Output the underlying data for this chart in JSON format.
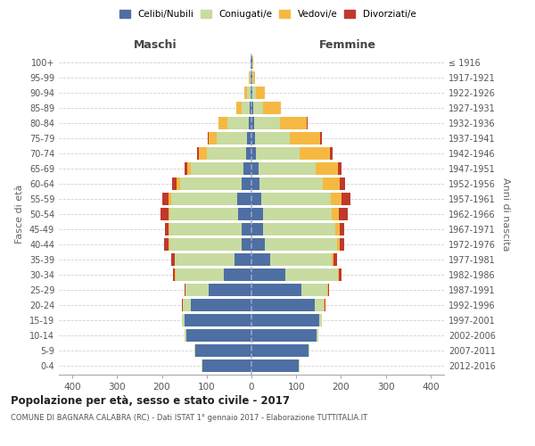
{
  "age_groups": [
    "0-4",
    "5-9",
    "10-14",
    "15-19",
    "20-24",
    "25-29",
    "30-34",
    "35-39",
    "40-44",
    "45-49",
    "50-54",
    "55-59",
    "60-64",
    "65-69",
    "70-74",
    "75-79",
    "80-84",
    "85-89",
    "90-94",
    "95-99",
    "100+"
  ],
  "birth_years": [
    "2012-2016",
    "2007-2011",
    "2002-2006",
    "1997-2001",
    "1992-1996",
    "1987-1991",
    "1982-1986",
    "1977-1981",
    "1972-1976",
    "1967-1971",
    "1962-1966",
    "1957-1961",
    "1952-1956",
    "1947-1951",
    "1942-1946",
    "1937-1941",
    "1932-1936",
    "1927-1931",
    "1922-1926",
    "1917-1921",
    "≤ 1916"
  ],
  "male": {
    "celibi": [
      110,
      125,
      145,
      150,
      135,
      95,
      62,
      38,
      22,
      22,
      30,
      32,
      22,
      18,
      12,
      10,
      6,
      4,
      2,
      1,
      1
    ],
    "coniugati": [
      2,
      2,
      5,
      5,
      18,
      52,
      108,
      133,
      162,
      162,
      153,
      148,
      138,
      118,
      88,
      68,
      48,
      18,
      8,
      2,
      1
    ],
    "vedovi": [
      0,
      0,
      0,
      0,
      1,
      1,
      1,
      1,
      1,
      2,
      3,
      5,
      8,
      8,
      18,
      18,
      20,
      12,
      5,
      2,
      0
    ],
    "divorziati": [
      0,
      0,
      0,
      0,
      2,
      2,
      4,
      8,
      10,
      8,
      18,
      15,
      10,
      5,
      3,
      2,
      0,
      0,
      0,
      0,
      0
    ]
  },
  "female": {
    "nubili": [
      105,
      128,
      145,
      152,
      142,
      112,
      76,
      42,
      30,
      25,
      25,
      22,
      18,
      15,
      10,
      8,
      5,
      4,
      2,
      1,
      1
    ],
    "coniugate": [
      2,
      2,
      5,
      5,
      20,
      58,
      118,
      138,
      162,
      162,
      155,
      155,
      142,
      128,
      98,
      78,
      58,
      22,
      8,
      2,
      1
    ],
    "vedove": [
      0,
      0,
      0,
      0,
      1,
      1,
      2,
      3,
      5,
      10,
      15,
      25,
      38,
      50,
      68,
      68,
      60,
      40,
      20,
      5,
      1
    ],
    "divorziate": [
      0,
      0,
      0,
      0,
      2,
      3,
      5,
      8,
      10,
      10,
      20,
      18,
      12,
      8,
      5,
      3,
      3,
      0,
      0,
      0,
      0
    ]
  },
  "colors": {
    "celibi_nubili": "#4e6fa3",
    "coniugati": "#c8dba0",
    "vedovi": "#f5b942",
    "divorziati": "#c0392b"
  },
  "title": "Popolazione per età, sesso e stato civile - 2017",
  "subtitle": "COMUNE DI BAGNARA CALABRA (RC) - Dati ISTAT 1° gennaio 2017 - Elaborazione TUTTITALIA.IT",
  "xlabel_left": "Maschi",
  "xlabel_right": "Femmine",
  "ylabel_left": "Fasce di età",
  "ylabel_right": "Anni di nascita",
  "xlim": 430,
  "background_color": "#ffffff",
  "grid_color": "#cccccc"
}
